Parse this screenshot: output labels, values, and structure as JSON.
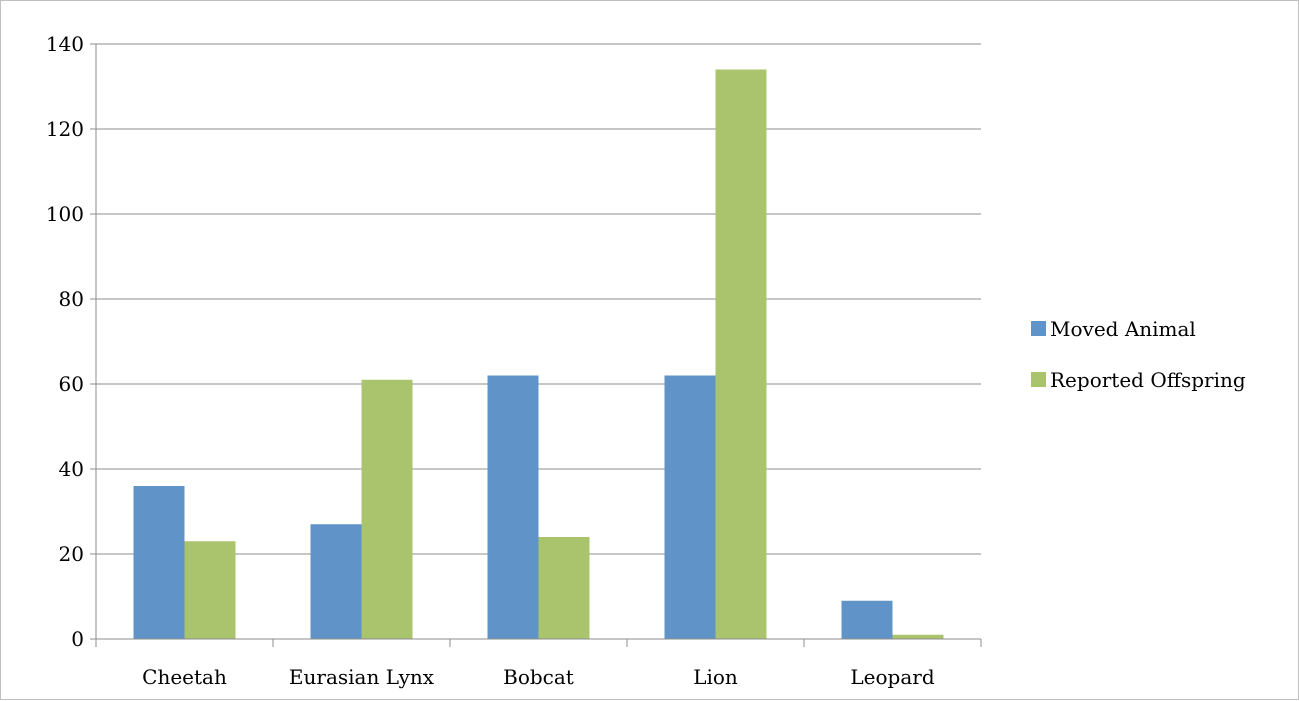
{
  "chart_data": {
    "type": "bar",
    "categories": [
      "Cheetah",
      "Eurasian Lynx",
      "Bobcat",
      "Lion",
      "Leopard"
    ],
    "series": [
      {
        "name": "Moved Animal",
        "color": "#6094c8",
        "values": [
          36,
          27,
          62,
          62,
          9
        ]
      },
      {
        "name": "Reported Offspring",
        "color": "#a9c46c",
        "values": [
          23,
          61,
          24,
          134,
          1
        ]
      }
    ],
    "title": "",
    "xlabel": "",
    "ylabel": "",
    "ylim": [
      0,
      140
    ],
    "yticks": [
      "0",
      "20",
      "40",
      "60",
      "80",
      "100",
      "120",
      "140"
    ],
    "grid": true,
    "legend_position": "right"
  }
}
